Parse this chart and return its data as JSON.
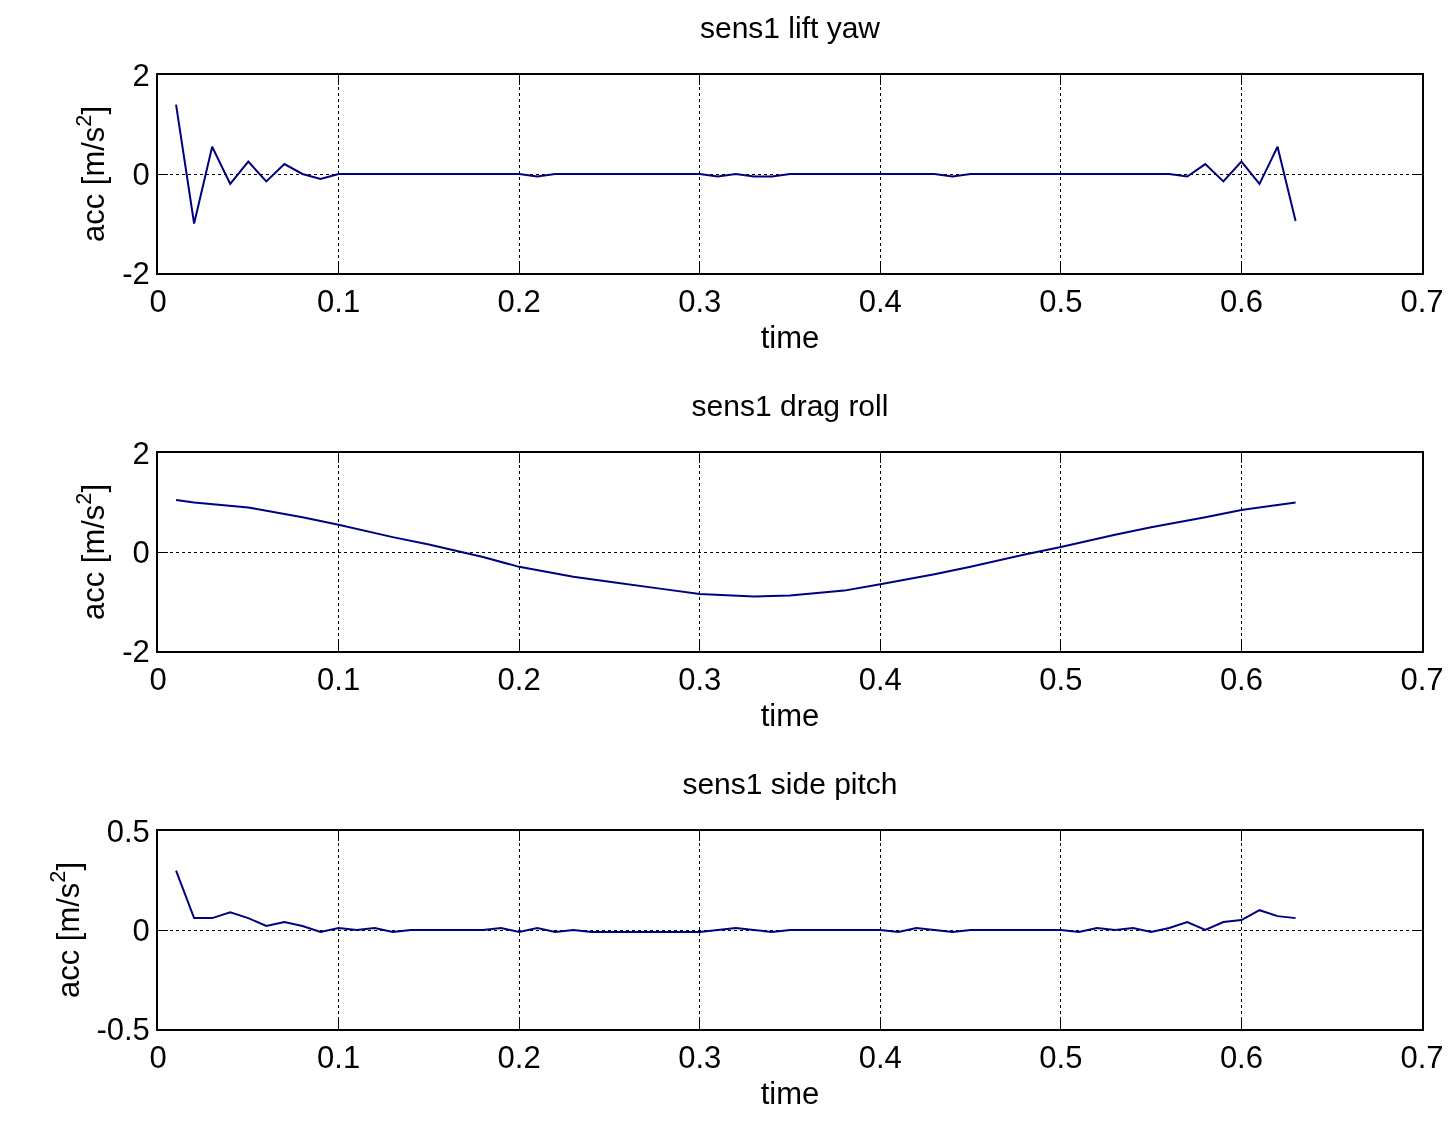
{
  "chart_data": [
    {
      "type": "line",
      "title": "sens1 lift yaw",
      "xlabel": "time",
      "ylabel": "acc [m/s$^{2}$]",
      "xlim": [
        0,
        0.7
      ],
      "xticks": [
        0,
        0.1,
        0.2,
        0.3,
        0.4,
        0.5,
        0.6,
        0.7
      ],
      "ylim": [
        -2,
        2
      ],
      "yticks": [
        -2,
        0,
        2
      ],
      "grid": true,
      "marker": "none",
      "line_style": "solid",
      "series": [
        {
          "color": "#000080",
          "x": [
            0.01,
            0.02,
            0.03,
            0.04,
            0.05,
            0.06,
            0.07,
            0.08,
            0.09,
            0.1,
            0.2,
            0.21,
            0.22,
            0.3,
            0.31,
            0.32,
            0.33,
            0.34,
            0.35,
            0.43,
            0.44,
            0.45,
            0.56,
            0.57,
            0.58,
            0.59,
            0.6,
            0.61,
            0.62,
            0.63
          ],
          "values": [
            1.4,
            -1.0,
            0.55,
            -0.2,
            0.25,
            -0.15,
            0.2,
            0,
            -0.1,
            0,
            0,
            -0.05,
            0,
            0,
            -0.05,
            0,
            -0.05,
            -0.05,
            0,
            0,
            -0.05,
            0,
            0,
            -0.05,
            0.2,
            -0.15,
            0.25,
            -0.2,
            0.55,
            -0.95
          ]
        }
      ]
    },
    {
      "type": "line",
      "title": "sens1 drag roll",
      "xlabel": "time",
      "ylabel": "acc [m/s$^{2}$]",
      "xlim": [
        0,
        0.7
      ],
      "xticks": [
        0,
        0.1,
        0.2,
        0.3,
        0.4,
        0.5,
        0.6,
        0.7
      ],
      "ylim": [
        -2,
        2
      ],
      "yticks": [
        -2,
        0,
        2
      ],
      "grid": true,
      "marker": "none",
      "line_style": "solid",
      "series": [
        {
          "color": "#000080",
          "x": [
            0.01,
            0.02,
            0.05,
            0.08,
            0.1,
            0.13,
            0.15,
            0.18,
            0.2,
            0.23,
            0.25,
            0.28,
            0.3,
            0.33,
            0.35,
            0.38,
            0.4,
            0.43,
            0.45,
            0.48,
            0.5,
            0.53,
            0.55,
            0.58,
            0.6,
            0.62,
            0.63
          ],
          "values": [
            1.05,
            1.0,
            0.9,
            0.7,
            0.55,
            0.3,
            0.15,
            -0.1,
            -0.3,
            -0.5,
            -0.6,
            -0.75,
            -0.85,
            -0.9,
            -0.88,
            -0.78,
            -0.65,
            -0.45,
            -0.3,
            -0.05,
            0.1,
            0.35,
            0.5,
            0.7,
            0.85,
            0.95,
            1.0
          ]
        }
      ]
    },
    {
      "type": "line",
      "title": "sens1 side pitch",
      "xlabel": "time",
      "ylabel": "acc [m/s$^{2}$]",
      "xlim": [
        0,
        0.7
      ],
      "xticks": [
        0,
        0.1,
        0.2,
        0.3,
        0.4,
        0.5,
        0.6,
        0.7
      ],
      "ylim": [
        -0.5,
        0.5
      ],
      "yticks": [
        -0.5,
        0,
        0.5
      ],
      "grid": true,
      "marker": "none",
      "line_style": "solid",
      "series": [
        {
          "color": "#000080",
          "x": [
            0.01,
            0.02,
            0.03,
            0.04,
            0.05,
            0.06,
            0.07,
            0.08,
            0.09,
            0.1,
            0.11,
            0.12,
            0.13,
            0.14,
            0.15,
            0.18,
            0.19,
            0.2,
            0.21,
            0.22,
            0.23,
            0.24,
            0.3,
            0.31,
            0.32,
            0.33,
            0.34,
            0.35,
            0.4,
            0.41,
            0.42,
            0.43,
            0.44,
            0.45,
            0.5,
            0.51,
            0.52,
            0.53,
            0.54,
            0.55,
            0.56,
            0.57,
            0.58,
            0.59,
            0.6,
            0.61,
            0.62,
            0.63
          ],
          "values": [
            0.3,
            0.06,
            0.06,
            0.09,
            0.06,
            0.02,
            0.04,
            0.02,
            -0.01,
            0.01,
            0,
            0.01,
            -0.01,
            0,
            0,
            0,
            0.01,
            -0.01,
            0.01,
            -0.01,
            0,
            -0.01,
            -0.01,
            0,
            0.01,
            0,
            -0.01,
            0,
            0,
            -0.01,
            0.01,
            0,
            -0.01,
            0,
            0,
            -0.01,
            0.01,
            0,
            0.01,
            -0.01,
            0.01,
            0.04,
            0,
            0.04,
            0.05,
            0.1,
            0.07,
            0.06
          ]
        }
      ]
    }
  ]
}
